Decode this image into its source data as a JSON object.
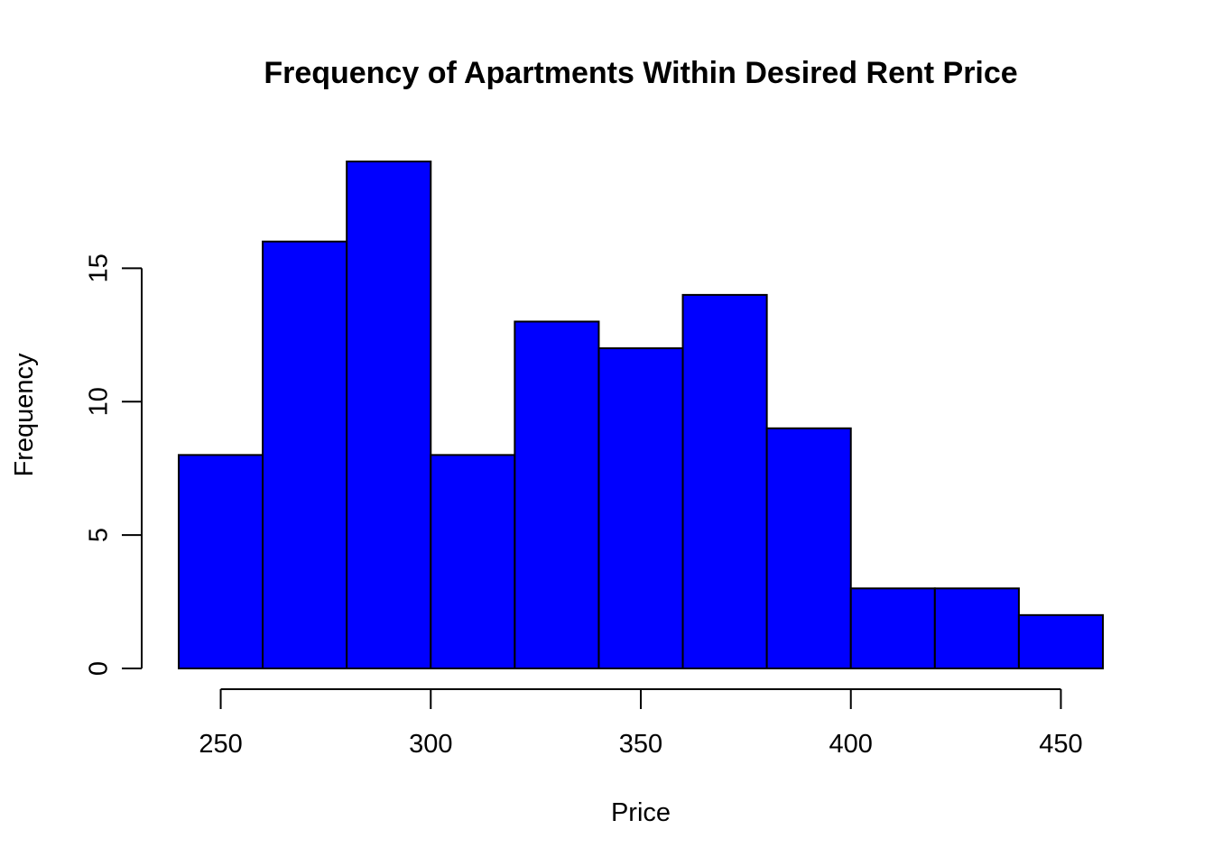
{
  "chart_data": {
    "type": "bar",
    "subtype": "histogram",
    "title": "Frequency of Apartments Within Desired Rent Price",
    "xlabel": "Price",
    "ylabel": "Frequency",
    "bins": [
      {
        "from": 240,
        "to": 260,
        "count": 8
      },
      {
        "from": 260,
        "to": 280,
        "count": 16
      },
      {
        "from": 280,
        "to": 300,
        "count": 19
      },
      {
        "from": 300,
        "to": 320,
        "count": 8
      },
      {
        "from": 320,
        "to": 340,
        "count": 13
      },
      {
        "from": 340,
        "to": 360,
        "count": 12
      },
      {
        "from": 360,
        "to": 380,
        "count": 14
      },
      {
        "from": 380,
        "to": 400,
        "count": 9
      },
      {
        "from": 400,
        "to": 420,
        "count": 3
      },
      {
        "from": 420,
        "to": 440,
        "count": 3
      },
      {
        "from": 440,
        "to": 460,
        "count": 2
      }
    ],
    "xticks": [
      250,
      300,
      350,
      400,
      450
    ],
    "yticks": [
      0,
      5,
      10,
      15
    ],
    "xlim": [
      240,
      460
    ],
    "ylim": [
      0,
      19
    ],
    "bar_color": "#0000ff",
    "bar_edge_color": "#000000",
    "grid": false,
    "legend": "none"
  }
}
